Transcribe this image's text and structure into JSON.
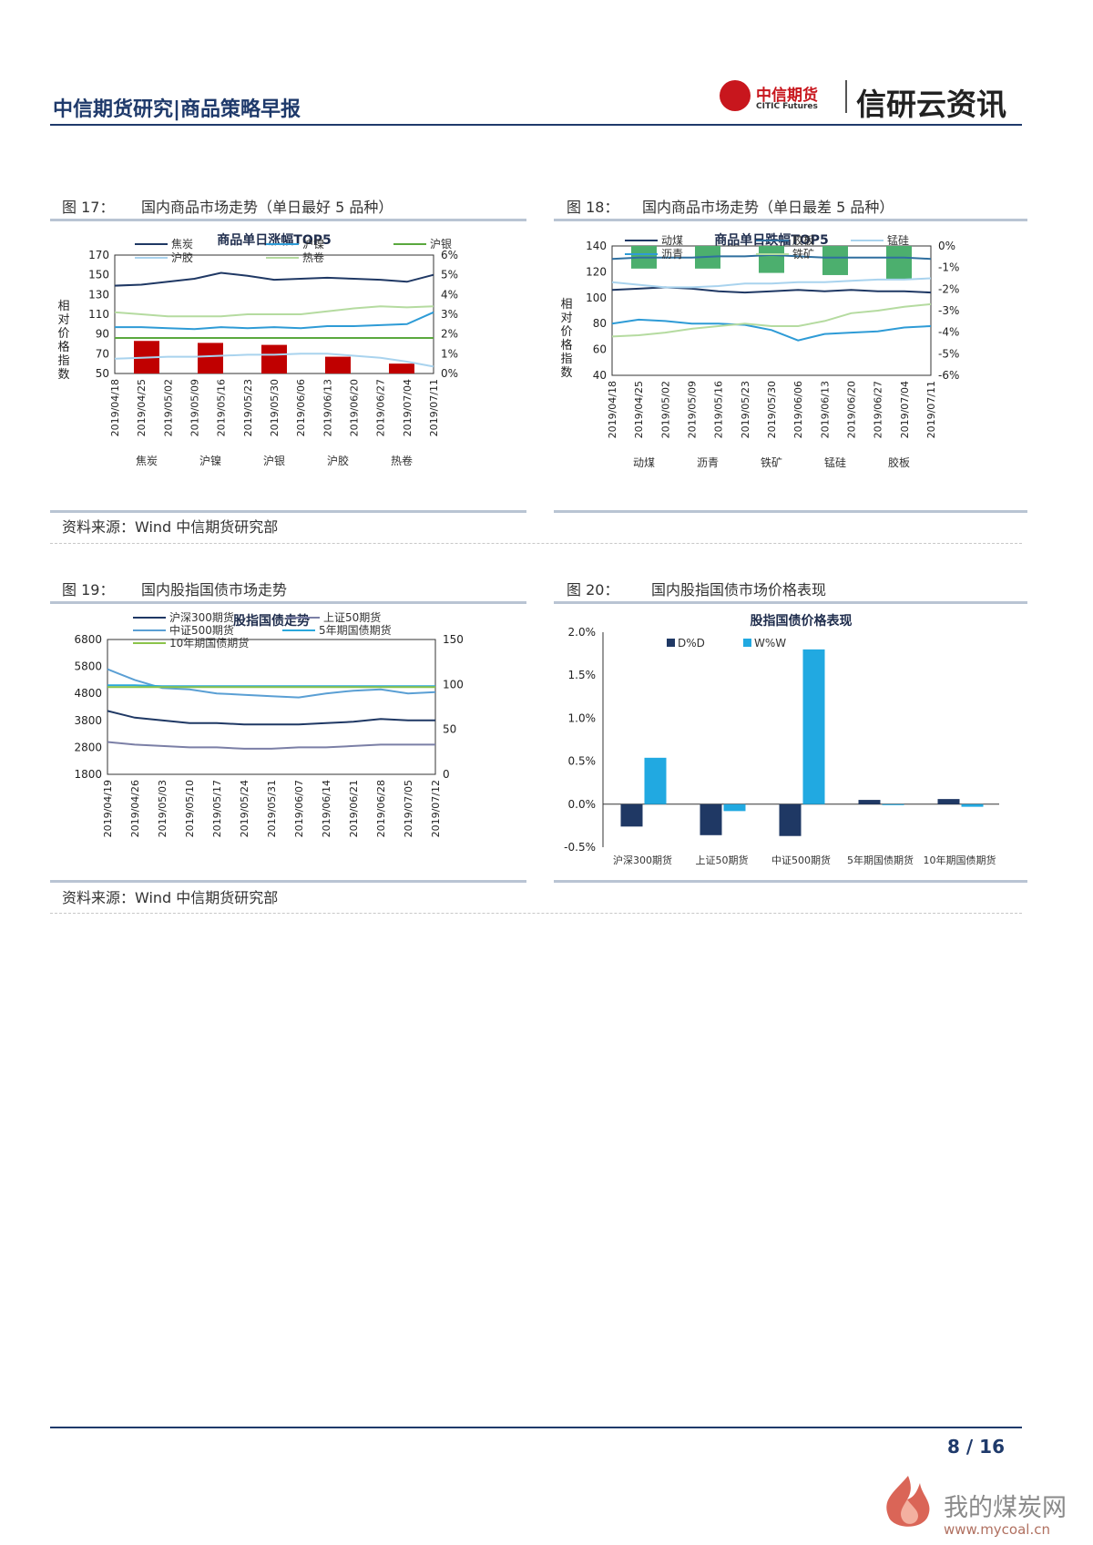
{
  "header": {
    "title": "中信期货研究|商品策略早报",
    "logo_cn": "中信期货",
    "logo_en": "CITIC Futures",
    "brand": "信研云资讯"
  },
  "figures": [
    {
      "label": "图 17：",
      "name": "国内商品市场走势（单日最好 5 品种）"
    },
    {
      "label": "图 18：",
      "name": "国内商品市场走势（单日最差 5 品种）"
    },
    {
      "label": "图 19：",
      "name": "国内股指国债市场走势"
    },
    {
      "label": "图 20：",
      "name": "国内股指国债市场价格表现"
    }
  ],
  "source": "资料来源：Wind  中信期货研究部",
  "footer": {
    "page": "8  /  16"
  },
  "watermark": {
    "text": "我的煤炭网",
    "url": "www.mycoal.cn"
  },
  "chart_data": [
    {
      "type": "line",
      "title": "商品单日涨幅TOP5",
      "ylabel": "相对价格指数",
      "ylim": [
        50,
        170
      ],
      "y_ticks": [
        "170",
        "150",
        "130",
        "110",
        "90",
        "70",
        "50"
      ],
      "y2lim": [
        0,
        6
      ],
      "y2_ticks": [
        "6%",
        "5%",
        "4%",
        "3%",
        "2%",
        "1%",
        "0%"
      ],
      "x": [
        "2019/04/18",
        "2019/04/25",
        "2019/05/02",
        "2019/05/09",
        "2019/05/16",
        "2019/05/23",
        "2019/05/30",
        "2019/06/06",
        "2019/06/13",
        "2019/06/20",
        "2019/06/27",
        "2019/07/04",
        "2019/07/11"
      ],
      "series": [
        {
          "name": "焦炭",
          "color": "#1f3864",
          "values": [
            139,
            140,
            143,
            146,
            152,
            149,
            145,
            146,
            147,
            146,
            145,
            143,
            150
          ]
        },
        {
          "name": "沪镍",
          "color": "#2e9bd6",
          "values": [
            97,
            97,
            96,
            95,
            97,
            96,
            97,
            96,
            98,
            98,
            99,
            100,
            112
          ]
        },
        {
          "name": "沪银",
          "color": "#5aa83e",
          "values": [
            86,
            86,
            86,
            86,
            86,
            86,
            86,
            86,
            86,
            86,
            86,
            86,
            86
          ]
        },
        {
          "name": "沪胶",
          "color": "#a9d3ee",
          "values": [
            65,
            66,
            67,
            67,
            68,
            69,
            69,
            70,
            70,
            68,
            66,
            62,
            57
          ]
        },
        {
          "name": "热卷",
          "color": "#b5dba0",
          "values": [
            112,
            110,
            108,
            108,
            108,
            110,
            110,
            110,
            113,
            116,
            118,
            117,
            118
          ]
        }
      ],
      "bars": {
        "categories": [
          "焦炭",
          "沪镍",
          "沪银",
          "沪胶",
          "热卷"
        ],
        "values": [
          1.65,
          1.55,
          1.45,
          0.85,
          0.5
        ],
        "color": "#c00000"
      }
    },
    {
      "type": "line",
      "title": "商品单日跌幅TOP5",
      "ylabel": "相对价格指数",
      "ylim": [
        40,
        140
      ],
      "y_ticks": [
        "140",
        "120",
        "100",
        "80",
        "60",
        "40"
      ],
      "y2lim": [
        -6,
        0
      ],
      "y2_ticks": [
        "0%",
        "-1%",
        "-2%",
        "-3%",
        "-4%",
        "-5%",
        "-6%"
      ],
      "x": [
        "2019/04/18",
        "2019/04/25",
        "2019/05/02",
        "2019/05/09",
        "2019/05/16",
        "2019/05/23",
        "2019/05/30",
        "2019/06/06",
        "2019/06/13",
        "2019/06/20",
        "2019/06/27",
        "2019/07/04",
        "2019/07/11"
      ],
      "series": [
        {
          "name": "动煤",
          "color": "#1f3864",
          "values": [
            106,
            107,
            108,
            107,
            105,
            104,
            105,
            106,
            105,
            106,
            105,
            105,
            104
          ]
        },
        {
          "name": "沥青",
          "color": "#2e9bd6",
          "values": [
            80,
            83,
            82,
            80,
            80,
            79,
            75,
            67,
            72,
            73,
            74,
            77,
            78
          ]
        },
        {
          "name": "铁矿",
          "color": "#b5dba0",
          "values": [
            70,
            71,
            73,
            76,
            78,
            80,
            78,
            78,
            82,
            88,
            90,
            93,
            95
          ]
        },
        {
          "name": "锰硅",
          "color": "#a9d3ee",
          "values": [
            112,
            110,
            108,
            108,
            109,
            111,
            111,
            112,
            112,
            113,
            114,
            114,
            115
          ]
        },
        {
          "name": "胶板",
          "color": "#2f6f9f",
          "values": [
            130,
            131,
            131,
            131,
            132,
            132,
            133,
            132,
            131,
            131,
            131,
            131,
            130
          ]
        }
      ],
      "bars": {
        "categories": [
          "动煤",
          "沥青",
          "铁矿",
          "锰硅",
          "胶板"
        ],
        "values": [
          -1.05,
          -1.05,
          -1.25,
          -1.35,
          -1.55
        ],
        "color": "#4caf6e"
      }
    },
    {
      "type": "line",
      "title": "股指国债走势",
      "ylim": [
        1800,
        6800
      ],
      "y_ticks": [
        "6800",
        "5800",
        "4800",
        "3800",
        "2800",
        "1800"
      ],
      "y2lim": [
        0,
        150
      ],
      "y2_ticks": [
        "150",
        "100",
        "50",
        "0"
      ],
      "x": [
        "2019/04/19",
        "2019/04/26",
        "2019/05/03",
        "2019/05/10",
        "2019/05/17",
        "2019/05/24",
        "2019/05/31",
        "2019/06/07",
        "2019/06/14",
        "2019/06/21",
        "2019/06/28",
        "2019/07/05",
        "2019/07/12"
      ],
      "series": [
        {
          "name": "沪深300期货",
          "color": "#1f3864",
          "values": [
            4150,
            3900,
            3800,
            3700,
            3700,
            3650,
            3650,
            3650,
            3700,
            3750,
            3850,
            3800,
            3800
          ]
        },
        {
          "name": "上证50期货",
          "color": "#7b7fa6",
          "values": [
            3000,
            2900,
            2850,
            2800,
            2800,
            2750,
            2750,
            2800,
            2800,
            2850,
            2900,
            2900,
            2900
          ]
        },
        {
          "name": "中证500期货",
          "color": "#5a9fd4",
          "values": [
            5700,
            5300,
            5000,
            4950,
            4800,
            4750,
            4700,
            4650,
            4800,
            4900,
            4950,
            4800,
            4850
          ]
        },
        {
          "name": "5年期国债期货",
          "color": "#2aa8dc",
          "axis": "right",
          "values": [
            99,
            99,
            98,
            98,
            98,
            98,
            98,
            98,
            98,
            98,
            98,
            98,
            98
          ]
        },
        {
          "name": "10年期国债期货",
          "color": "#8bc34a",
          "axis": "right",
          "values": [
            97,
            97,
            97,
            97,
            97,
            97,
            97,
            97,
            97,
            97,
            97,
            97,
            97
          ]
        }
      ]
    },
    {
      "type": "bar",
      "title": "股指国债价格表现",
      "ylim": [
        -0.5,
        2.0
      ],
      "y_ticks": [
        "2.0%",
        "1.5%",
        "1.0%",
        "0.5%",
        "0.0%",
        "-0.5%"
      ],
      "categories": [
        "沪深300期货",
        "上证50期货",
        "中证500期货",
        "5年期国债期货",
        "10年期国债期货"
      ],
      "series": [
        {
          "name": "D%D",
          "color": "#1f3864",
          "values": [
            -0.26,
            -0.36,
            -0.37,
            0.05,
            0.06
          ]
        },
        {
          "name": "W%W",
          "color": "#21a9e1",
          "values": [
            0.54,
            -0.08,
            1.8,
            -0.01,
            -0.03
          ]
        }
      ]
    }
  ]
}
